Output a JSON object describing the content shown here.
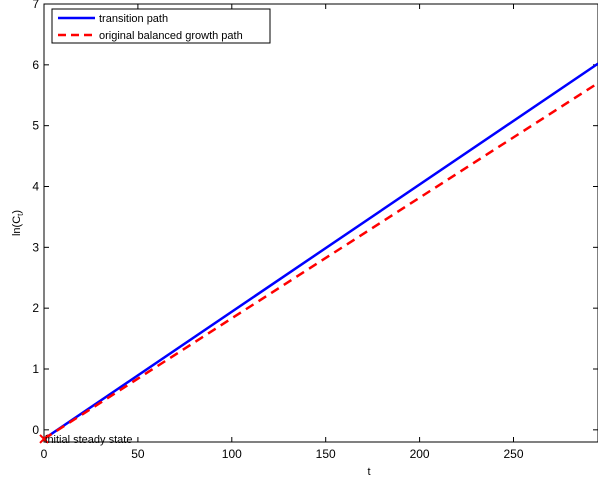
{
  "chart_data": {
    "type": "line",
    "xlabel": "t",
    "ylabel": "ln(C",
    "ylabel_subscript": "t",
    "ylabel_close": ")",
    "xlim": [
      0,
      295
    ],
    "ylim": [
      -0.2,
      7
    ],
    "xticks": [
      0,
      50,
      100,
      150,
      200,
      250
    ],
    "yticks": [
      0,
      1,
      2,
      3,
      4,
      5,
      6,
      7
    ],
    "grid": false,
    "legend_position": "top-left",
    "series": [
      {
        "name": "transition path",
        "color": "#0000ff",
        "dash": "solid",
        "x": [
          0,
          295
        ],
        "y": [
          -0.15,
          6.02
        ]
      },
      {
        "name": "original balanced growth path",
        "color": "#ff0000",
        "dash": "dashed",
        "x": [
          0,
          295
        ],
        "y": [
          -0.15,
          5.7
        ]
      }
    ],
    "annotations": [
      {
        "text": "initial steady state",
        "x": 0,
        "y": -0.15,
        "marker": "x"
      }
    ]
  }
}
